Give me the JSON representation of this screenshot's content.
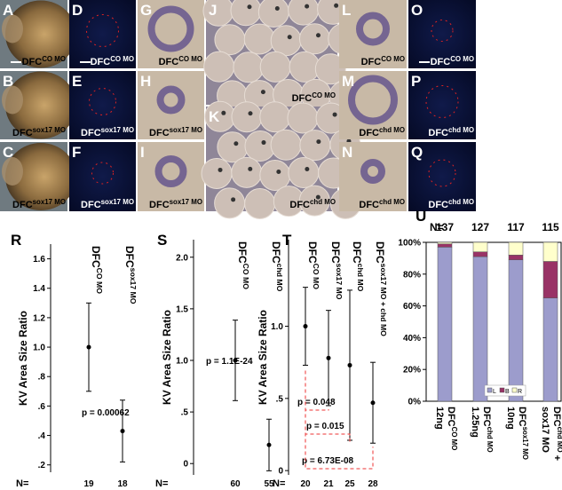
{
  "panels": [
    {
      "letter": "A",
      "caption": {
        "text": "DFC",
        "sup": "CO MO"
      }
    },
    {
      "letter": "B",
      "caption": {
        "text": "DFC",
        "sup": "sox17 MO"
      }
    },
    {
      "letter": "C",
      "caption": {
        "text": "DFC",
        "sup": "sox17 MO"
      }
    },
    {
      "letter": "D",
      "caption": {
        "text": "DFC",
        "sup": "CO MO"
      }
    },
    {
      "letter": "E",
      "caption": {
        "text": "DFC",
        "sup": "sox17 MO"
      }
    },
    {
      "letter": "F",
      "caption": {
        "text": "DFC",
        "sup": "sox17 MO"
      }
    },
    {
      "letter": "G",
      "caption": {
        "text": "DFC",
        "sup": "CO MO"
      }
    },
    {
      "letter": "H",
      "caption": {
        "text": "DFC",
        "sup": "sox17 MO"
      }
    },
    {
      "letter": "I",
      "caption": {
        "text": "DFC",
        "sup": "sox17 MO"
      }
    },
    {
      "letter": "J",
      "caption": {
        "text": "DFC",
        "sup": "CO MO"
      }
    },
    {
      "letter": "K",
      "caption": {
        "text": "DFC",
        "sup": "chd MO"
      }
    },
    {
      "letter": "L",
      "caption": {
        "text": "DFC",
        "sup": "CO MO"
      }
    },
    {
      "letter": "M",
      "caption": {
        "text": "DFC",
        "sup": "chd MO"
      }
    },
    {
      "letter": "N",
      "caption": {
        "text": "DFC",
        "sup": "chd MO"
      }
    },
    {
      "letter": "O",
      "caption": {
        "text": "DFC",
        "sup": "CO MO"
      }
    },
    {
      "letter": "P",
      "caption": {
        "text": "DFC",
        "sup": "chd MO"
      }
    },
    {
      "letter": "Q",
      "caption": {
        "text": "DFC",
        "sup": "chd MO"
      }
    }
  ],
  "chart_data": [
    {
      "type": "errorbar",
      "panel_label": "R",
      "ylabel": "KV Area Size Ratio",
      "n_label": "N=",
      "categories": [
        {
          "text": "DFC",
          "sup": "CO MO"
        },
        {
          "text": "DFC",
          "sup": "sox17 MO"
        }
      ],
      "values": [
        1.0,
        0.43
      ],
      "errors": [
        0.3,
        0.21
      ],
      "n_values": [
        19,
        18
      ],
      "pvalues": [
        "p = 0.00062"
      ],
      "ylim": [
        0.15,
        1.7
      ],
      "yticks": [
        {
          "value": 0.2,
          "label": ".2"
        },
        {
          "value": 0.4,
          "label": ".4"
        },
        {
          "value": 0.6,
          "label": ".6"
        },
        {
          "value": 0.8,
          "label": ".8"
        },
        {
          "value": 1,
          "label": "1.0"
        },
        1.2,
        1.4,
        1.6
      ]
    },
    {
      "type": "errorbar",
      "panel_label": "S",
      "ylabel": "KV Area Size Ratio",
      "n_label": "N=",
      "categories": [
        {
          "text": "DFC",
          "sup": "CO MO"
        },
        {
          "text": "DFC",
          "sup": "chd MO"
        }
      ],
      "values": [
        1.0,
        0.18
      ],
      "errors": [
        0.39,
        0.25
      ],
      "n_values": [
        60,
        55
      ],
      "pvalues": [
        "p = 1.1E-24"
      ],
      "ylim": [
        -0.11,
        2.17
      ],
      "yticks": [
        0,
        {
          "value": 0.5,
          "label": ".5"
        },
        {
          "value": 1,
          "label": "1.0"
        },
        1.5,
        {
          "value": 2,
          "label": "2.0"
        }
      ]
    },
    {
      "type": "errorbar",
      "panel_label": "T",
      "ylabel": "KV Area Size Ratio",
      "n_label": "N=",
      "categories": [
        {
          "text": "DFC",
          "sup": "CO MO"
        },
        {
          "text": "DFC",
          "sup": "sox17 MO"
        },
        {
          "text": "DFC",
          "sup": "chd MO"
        },
        {
          "text": "DFC",
          "sup": "sox17 MO + chd MO"
        }
      ],
      "values": [
        1.0,
        0.78,
        0.73,
        0.47
      ],
      "errors": [
        0.27,
        0.33,
        0.52,
        0.28
      ],
      "n_values": [
        20,
        21,
        25,
        28
      ],
      "pvalues": [
        "p = 0.048",
        "p = 0.015",
        "p = 6.73E-08"
      ],
      "ylim": [
        -0.03,
        1.6
      ],
      "yticks": [
        0,
        {
          "value": 0.5,
          "label": ".5"
        },
        {
          "value": 1,
          "label": "1.0"
        }
      ]
    },
    {
      "type": "stacked_bar",
      "panel_label": "U",
      "n_label": "N=",
      "categories": [
        {
          "dose": "12ng",
          "text": "DFC",
          "sup": "CO MO",
          "suffix": ""
        },
        {
          "dose": "1.25ng",
          "text": "DFC",
          "sup": "chd MO",
          "suffix": ""
        },
        {
          "dose": "10ng",
          "text": "DFC",
          "sup": "sox17 MO",
          "suffix": ""
        },
        {
          "dose": "sox17 MO",
          "text": "DFC",
          "sup": "chd MO",
          "suffix": " +"
        }
      ],
      "n_values": [
        137,
        127,
        117,
        115
      ],
      "series": [
        {
          "name": "L",
          "color": "#9c9ccc",
          "values": [
            97,
            91,
            89,
            65
          ]
        },
        {
          "name": "B",
          "color": "#993366",
          "values": [
            2,
            3,
            3,
            23
          ]
        },
        {
          "name": "R",
          "color": "#ffffcc",
          "values": [
            1,
            6,
            8,
            12
          ]
        }
      ],
      "ylim": [
        0,
        100
      ],
      "yticks": [
        {
          "value": 0,
          "label": "0%"
        },
        {
          "value": 20,
          "label": "20%"
        },
        {
          "value": 40,
          "label": "40%"
        },
        {
          "value": 60,
          "label": "60%"
        },
        {
          "value": 80,
          "label": "80%"
        },
        {
          "value": 100,
          "label": "100%"
        }
      ]
    }
  ]
}
